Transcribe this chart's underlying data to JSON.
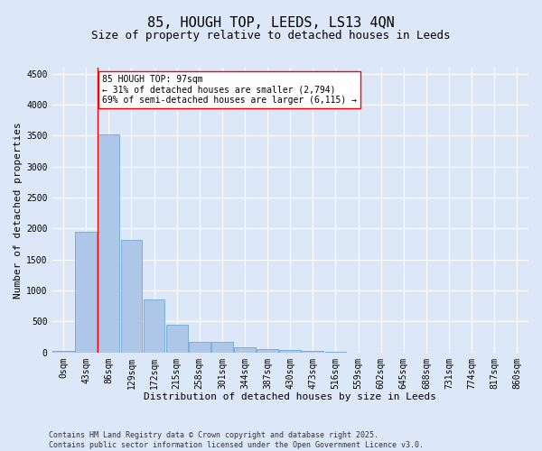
{
  "title": "85, HOUGH TOP, LEEDS, LS13 4QN",
  "subtitle": "Size of property relative to detached houses in Leeds",
  "xlabel": "Distribution of detached houses by size in Leeds",
  "ylabel": "Number of detached properties",
  "bar_color": "#aec6e8",
  "bar_edge_color": "#5a9fd4",
  "background_color": "#dce8f8",
  "grid_color": "#ffffff",
  "categories": [
    "0sqm",
    "43sqm",
    "86sqm",
    "129sqm",
    "172sqm",
    "215sqm",
    "258sqm",
    "301sqm",
    "344sqm",
    "387sqm",
    "430sqm",
    "473sqm",
    "516sqm",
    "559sqm",
    "602sqm",
    "645sqm",
    "688sqm",
    "731sqm",
    "774sqm",
    "817sqm",
    "860sqm"
  ],
  "values": [
    20,
    1950,
    3520,
    1810,
    860,
    450,
    175,
    165,
    90,
    60,
    35,
    25,
    5,
    2,
    1,
    0,
    0,
    0,
    0,
    0,
    0
  ],
  "ylim": [
    0,
    4600
  ],
  "yticks": [
    0,
    500,
    1000,
    1500,
    2000,
    2500,
    3000,
    3500,
    4000,
    4500
  ],
  "annotation_line1": "85 HOUGH TOP: 97sqm",
  "annotation_line2": "← 31% of detached houses are smaller (2,794)",
  "annotation_line3": "69% of semi-detached houses are larger (6,115) →",
  "vline_bin": 2,
  "footer_line1": "Contains HM Land Registry data © Crown copyright and database right 2025.",
  "footer_line2": "Contains public sector information licensed under the Open Government Licence v3.0.",
  "title_fontsize": 11,
  "subtitle_fontsize": 9,
  "axis_label_fontsize": 8,
  "tick_fontsize": 7,
  "annotation_fontsize": 7,
  "footer_fontsize": 6
}
